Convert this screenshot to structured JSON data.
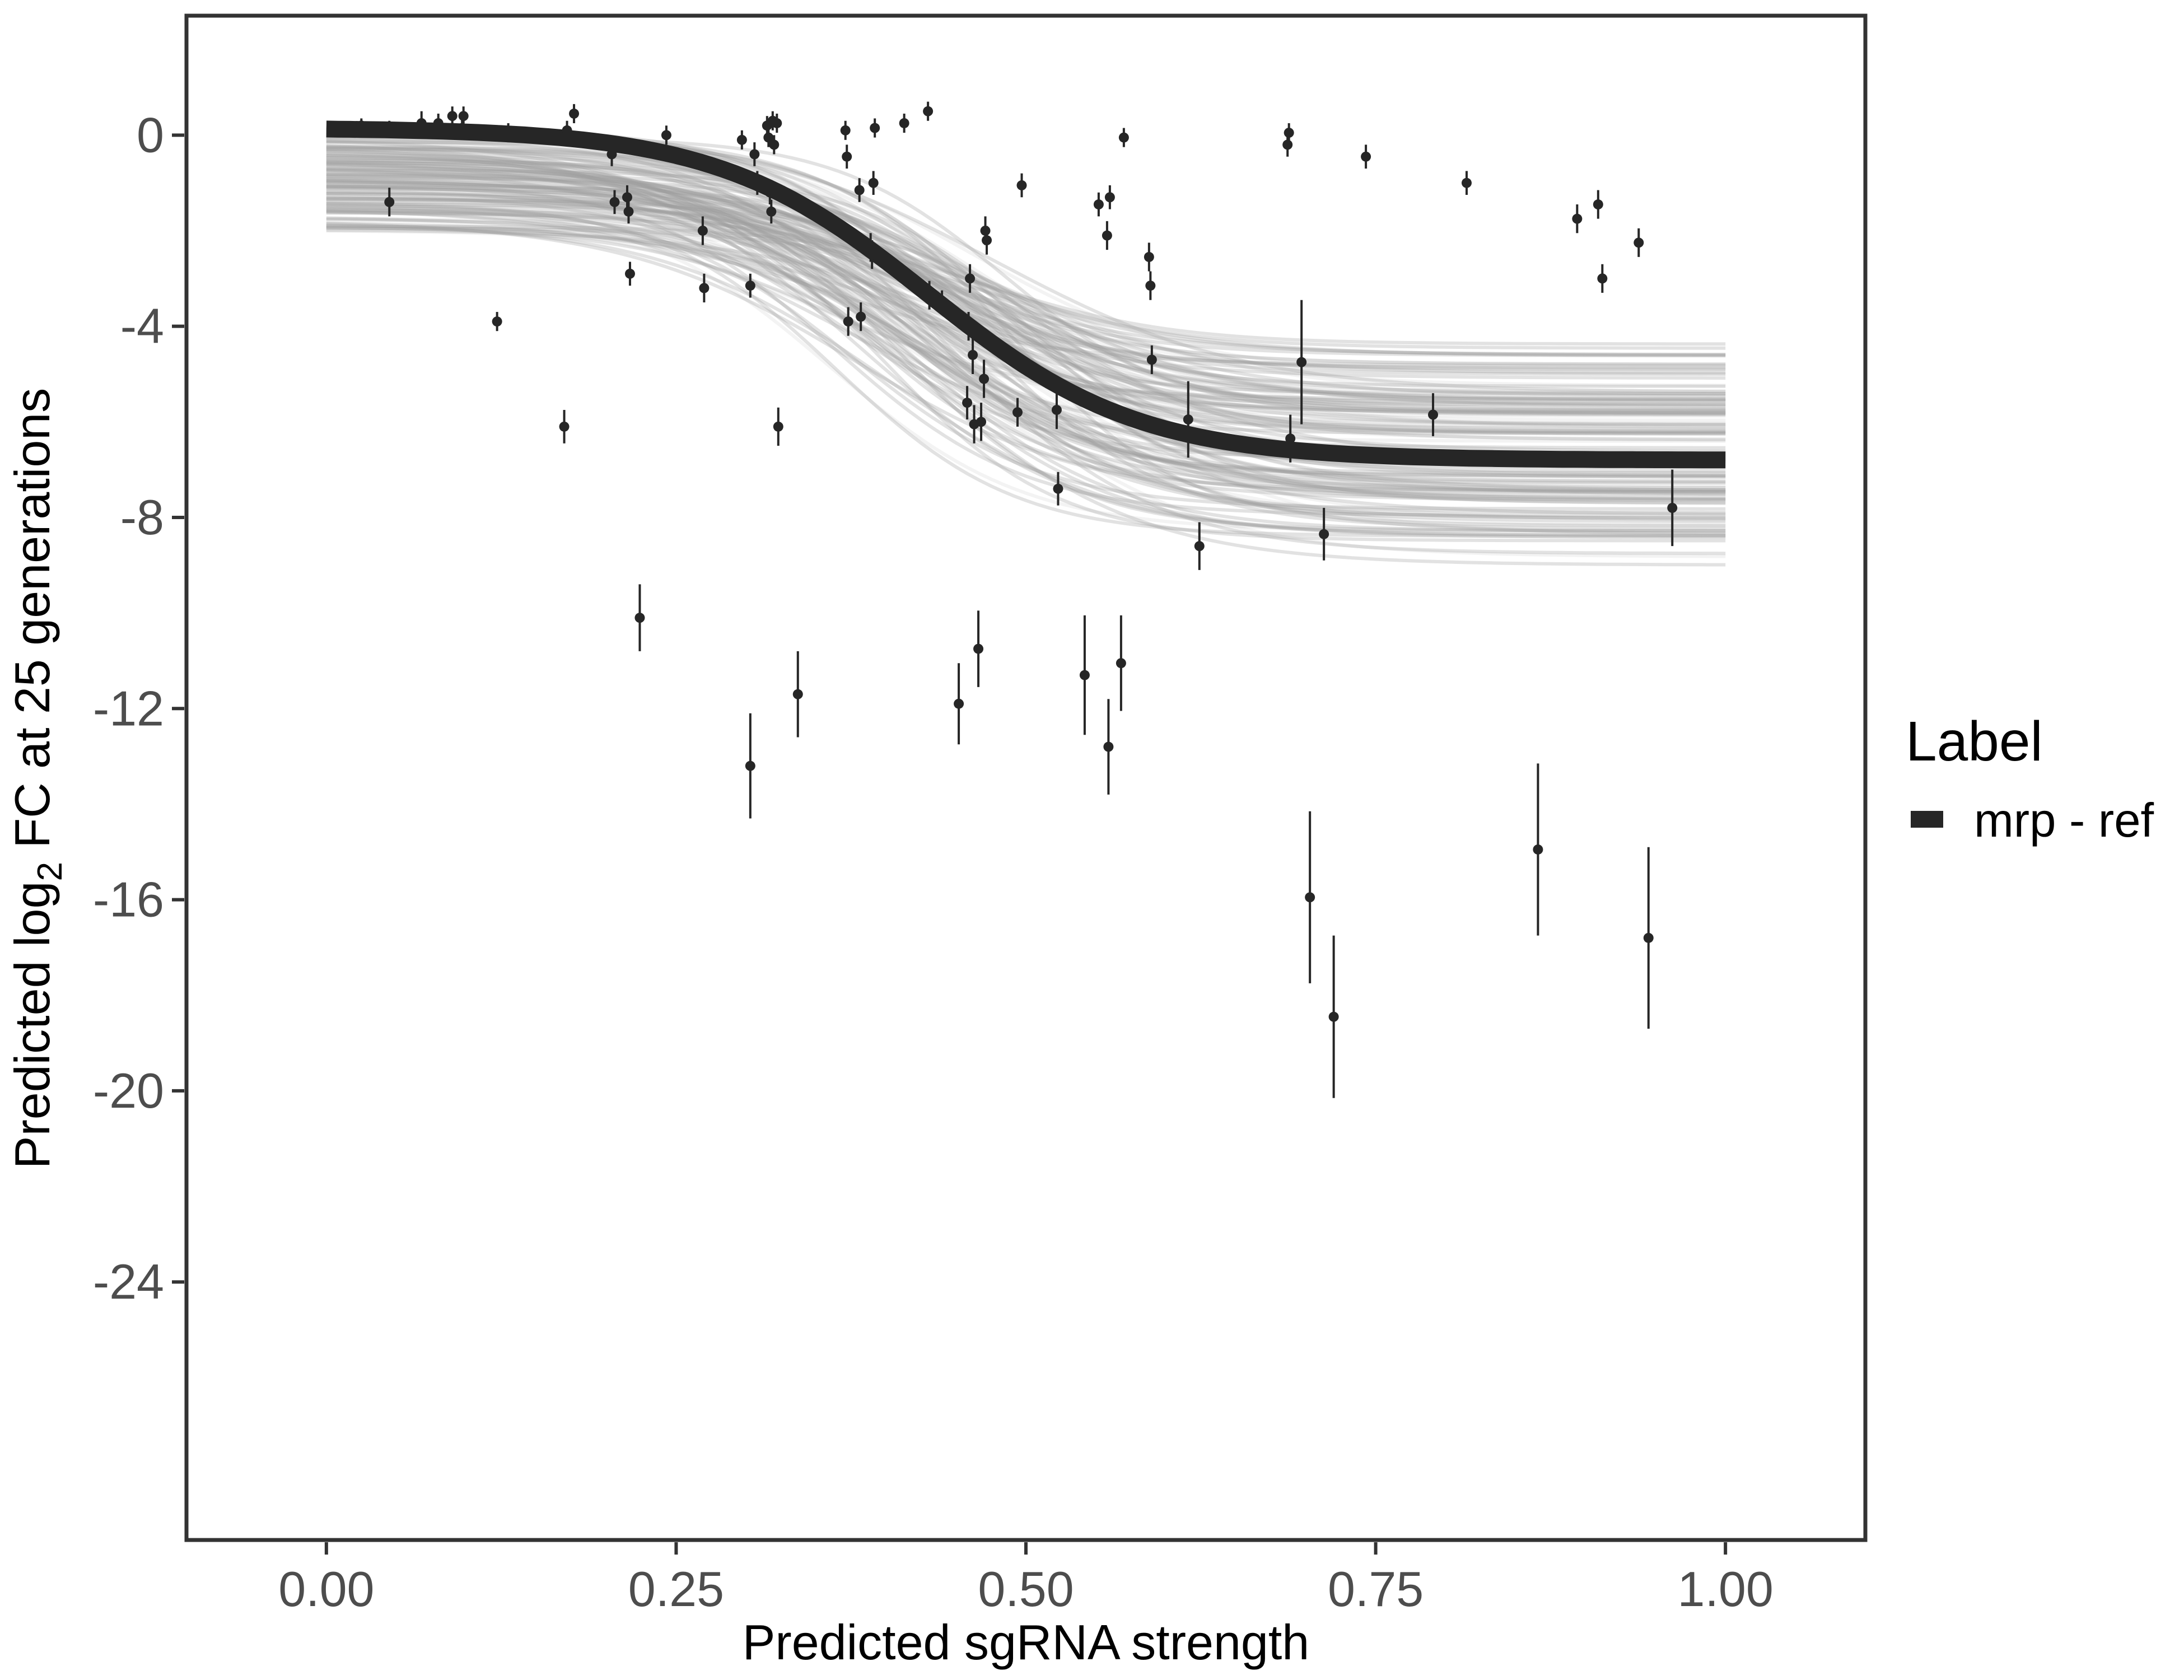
{
  "chart_data": {
    "type": "scatter",
    "title": "",
    "xlabel": "Predicted sgRNA strength",
    "ylabel_main": "Predicted  log",
    "ylabel_subscript": "2",
    "ylabel_rest": " FC at 25 generations",
    "xlim": [
      -0.1,
      1.1
    ],
    "ylim": [
      -29.4,
      2.5
    ],
    "x_ticks": [
      0,
      0.25,
      0.5,
      0.75,
      1
    ],
    "x_tick_labels": [
      "0.00",
      "0.25",
      "0.50",
      "0.75",
      "1.00"
    ],
    "y_ticks": [
      0,
      -4,
      -8,
      -12,
      -16,
      -20,
      -24
    ],
    "y_tick_labels": [
      "0",
      "-4",
      "-8",
      "-12",
      "-16",
      "-20",
      "-24"
    ],
    "legend": {
      "title": "Label",
      "entries": [
        {
          "label": "mrp - ref",
          "color": "#262626"
        }
      ],
      "placement": "right"
    },
    "fit_curve": {
      "name": "mrp - ref",
      "model": "logistic",
      "upper": 0.15,
      "lower": -6.8,
      "midpoint": 0.43,
      "scale": 0.075,
      "color": "#262626"
    },
    "posterior_draws": {
      "count": 140,
      "color": "#9e9e9e",
      "upper_range": [
        -2,
        0.2
      ],
      "lower_range": [
        -9.4,
        -4.0
      ],
      "midpoint_range": [
        0.36,
        0.5
      ],
      "scale_range": [
        0.06,
        0.09
      ]
    },
    "points": [
      {
        "x": 0.02,
        "y": 0.15,
        "err": 0.12
      },
      {
        "x": 0.025,
        "y": 0.2,
        "err": 0.15
      },
      {
        "x": 0.045,
        "y": 0.15,
        "err": 0.15
      },
      {
        "x": 0.045,
        "y": -1.4,
        "err": 0.3
      },
      {
        "x": 0.068,
        "y": 0.25,
        "err": 0.25
      },
      {
        "x": 0.08,
        "y": 0.25,
        "err": 0.2
      },
      {
        "x": 0.09,
        "y": 0.4,
        "err": 0.2
      },
      {
        "x": 0.097,
        "y": 0.15,
        "err": 0.2
      },
      {
        "x": 0.098,
        "y": 0.4,
        "err": 0.2
      },
      {
        "x": 0.122,
        "y": -3.9,
        "err": 0.2
      },
      {
        "x": 0.13,
        "y": 0.05,
        "err": 0.2
      },
      {
        "x": 0.17,
        "y": -6.1,
        "err": 0.35
      },
      {
        "x": 0.172,
        "y": 0.1,
        "err": 0.2
      },
      {
        "x": 0.177,
        "y": 0.45,
        "err": 0.2
      },
      {
        "x": 0.204,
        "y": -0.4,
        "err": 0.25
      },
      {
        "x": 0.206,
        "y": -1.4,
        "err": 0.25
      },
      {
        "x": 0.215,
        "y": -1.3,
        "err": 0.25
      },
      {
        "x": 0.216,
        "y": -1.6,
        "err": 0.25
      },
      {
        "x": 0.217,
        "y": -2.9,
        "err": 0.25
      },
      {
        "x": 0.224,
        "y": -10.1,
        "err": 0.7
      },
      {
        "x": 0.243,
        "y": 0.0,
        "err": 0.2
      },
      {
        "x": 0.269,
        "y": -2.0,
        "err": 0.3
      },
      {
        "x": 0.27,
        "y": -3.2,
        "err": 0.3
      },
      {
        "x": 0.297,
        "y": -0.1,
        "err": 0.2
      },
      {
        "x": 0.303,
        "y": -3.15,
        "err": 0.25
      },
      {
        "x": 0.303,
        "y": -13.2,
        "err": 1.1
      },
      {
        "x": 0.306,
        "y": -0.4,
        "err": 0.25
      },
      {
        "x": 0.308,
        "y": -1.0,
        "err": 0.25
      },
      {
        "x": 0.315,
        "y": 0.2,
        "err": 0.2
      },
      {
        "x": 0.316,
        "y": -0.05,
        "err": 0.2
      },
      {
        "x": 0.317,
        "y": -1.2,
        "err": 0.25
      },
      {
        "x": 0.318,
        "y": -1.6,
        "err": 0.25
      },
      {
        "x": 0.319,
        "y": 0.3,
        "err": 0.2
      },
      {
        "x": 0.32,
        "y": -0.2,
        "err": 0.2
      },
      {
        "x": 0.322,
        "y": 0.25,
        "err": 0.2
      },
      {
        "x": 0.323,
        "y": -6.1,
        "err": 0.4
      },
      {
        "x": 0.337,
        "y": -11.7,
        "err": 0.9
      },
      {
        "x": 0.371,
        "y": 0.1,
        "err": 0.2
      },
      {
        "x": 0.372,
        "y": -0.45,
        "err": 0.25
      },
      {
        "x": 0.373,
        "y": -3.9,
        "err": 0.3
      },
      {
        "x": 0.381,
        "y": -1.15,
        "err": 0.25
      },
      {
        "x": 0.382,
        "y": -3.8,
        "err": 0.3
      },
      {
        "x": 0.389,
        "y": -2.35,
        "err": 0.3
      },
      {
        "x": 0.39,
        "y": -2.5,
        "err": 0.3
      },
      {
        "x": 0.391,
        "y": -1.0,
        "err": 0.25
      },
      {
        "x": 0.392,
        "y": 0.15,
        "err": 0.2
      },
      {
        "x": 0.413,
        "y": 0.25,
        "err": 0.2
      },
      {
        "x": 0.43,
        "y": 0.5,
        "err": 0.2
      },
      {
        "x": 0.431,
        "y": -3.35,
        "err": 0.3
      },
      {
        "x": 0.44,
        "y": -3.5,
        "err": 0.25
      },
      {
        "x": 0.452,
        "y": -11.9,
        "err": 0.85
      },
      {
        "x": 0.458,
        "y": -5.6,
        "err": 0.35
      },
      {
        "x": 0.459,
        "y": -4.0,
        "err": 0.3
      },
      {
        "x": 0.46,
        "y": -3.0,
        "err": 0.3
      },
      {
        "x": 0.462,
        "y": -4.6,
        "err": 0.4
      },
      {
        "x": 0.463,
        "y": -6.05,
        "err": 0.4
      },
      {
        "x": 0.466,
        "y": -10.75,
        "err": 0.8
      },
      {
        "x": 0.468,
        "y": -6.0,
        "err": 0.4
      },
      {
        "x": 0.47,
        "y": -5.1,
        "err": 0.4
      },
      {
        "x": 0.471,
        "y": -2.0,
        "err": 0.3
      },
      {
        "x": 0.472,
        "y": -2.2,
        "err": 0.3
      },
      {
        "x": 0.494,
        "y": -5.8,
        "err": 0.3
      },
      {
        "x": 0.497,
        "y": -1.05,
        "err": 0.25
      },
      {
        "x": 0.522,
        "y": -5.75,
        "err": 0.4
      },
      {
        "x": 0.523,
        "y": -7.4,
        "err": 0.35
      },
      {
        "x": 0.542,
        "y": -11.3,
        "err": 1.25
      },
      {
        "x": 0.552,
        "y": -1.45,
        "err": 0.25
      },
      {
        "x": 0.558,
        "y": -2.1,
        "err": 0.3
      },
      {
        "x": 0.559,
        "y": -12.8,
        "err": 1.0
      },
      {
        "x": 0.56,
        "y": -1.3,
        "err": 0.25
      },
      {
        "x": 0.568,
        "y": -11.05,
        "err": 1.0
      },
      {
        "x": 0.57,
        "y": -0.05,
        "err": 0.2
      },
      {
        "x": 0.588,
        "y": -2.55,
        "err": 0.3
      },
      {
        "x": 0.589,
        "y": -3.15,
        "err": 0.3
      },
      {
        "x": 0.59,
        "y": -4.7,
        "err": 0.3
      },
      {
        "x": 0.616,
        "y": -5.95,
        "err": 0.8
      },
      {
        "x": 0.624,
        "y": -8.6,
        "err": 0.5
      },
      {
        "x": 0.687,
        "y": -0.2,
        "err": 0.25
      },
      {
        "x": 0.688,
        "y": 0.05,
        "err": 0.2
      },
      {
        "x": 0.689,
        "y": -6.35,
        "err": 0.5
      },
      {
        "x": 0.697,
        "y": -4.75,
        "err": 1.3
      },
      {
        "x": 0.703,
        "y": -15.95,
        "err": 1.8
      },
      {
        "x": 0.713,
        "y": -8.35,
        "err": 0.55
      },
      {
        "x": 0.72,
        "y": -18.45,
        "err": 1.7
      },
      {
        "x": 0.743,
        "y": -0.45,
        "err": 0.25
      },
      {
        "x": 0.791,
        "y": -5.85,
        "err": 0.45
      },
      {
        "x": 0.815,
        "y": -1.0,
        "err": 0.25
      },
      {
        "x": 0.866,
        "y": -14.95,
        "err": 1.8
      },
      {
        "x": 0.894,
        "y": -1.75,
        "err": 0.3
      },
      {
        "x": 0.909,
        "y": -1.45,
        "err": 0.3
      },
      {
        "x": 0.912,
        "y": -3.0,
        "err": 0.3
      },
      {
        "x": 0.938,
        "y": -2.25,
        "err": 0.3
      },
      {
        "x": 0.945,
        "y": -16.8,
        "err": 1.9
      },
      {
        "x": 0.962,
        "y": -7.8,
        "err": 0.8
      }
    ]
  }
}
